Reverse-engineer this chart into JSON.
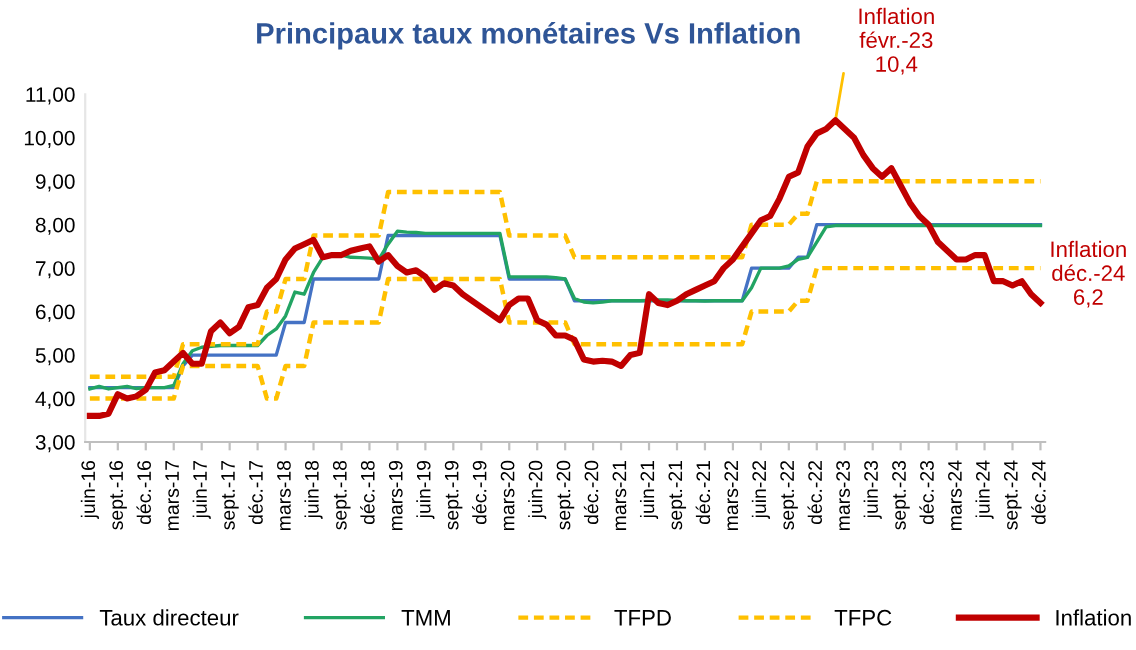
{
  "chart_data": {
    "type": "line",
    "title": "Principaux taux monétaires Vs Inflation",
    "categories": [
      "juin-16",
      null,
      null,
      "sept.-16",
      null,
      null,
      "déc.-16",
      null,
      null,
      "mars-17",
      null,
      null,
      "juin-17",
      null,
      null,
      "sept.-17",
      null,
      null,
      "déc.-17",
      null,
      null,
      "mars-18",
      null,
      null,
      "juin-18",
      null,
      null,
      "sept.-18",
      null,
      null,
      "déc.-18",
      null,
      null,
      "mars-19",
      null,
      null,
      "juin-19",
      null,
      null,
      "sept.-19",
      null,
      null,
      "déc.-19",
      null,
      null,
      "mars-20",
      null,
      null,
      "juin-20",
      null,
      null,
      "sept.-20",
      null,
      null,
      "déc.-20",
      null,
      null,
      "mars-21",
      null,
      null,
      "juin-21",
      null,
      null,
      "sept.-21",
      null,
      null,
      "déc.-21",
      null,
      null,
      "mars-22",
      null,
      null,
      "juin-22",
      null,
      null,
      "sept.-22",
      null,
      null,
      "déc.-22",
      null,
      null,
      "mars-23",
      null,
      null,
      "juin-23",
      null,
      null,
      "sept.-23",
      null,
      null,
      "déc.-23",
      null,
      null,
      "mars-24",
      null,
      null,
      "juin-24",
      null,
      null,
      "sept.-24",
      null,
      null,
      "déc.-24"
    ],
    "series": [
      {
        "name": "Taux directeur",
        "color": "#4472c4",
        "line_style": "solid",
        "values": [
          4.25,
          4.25,
          4.25,
          4.25,
          4.25,
          4.25,
          4.25,
          4.25,
          4.25,
          4.25,
          4.75,
          5.0,
          5.0,
          5.0,
          5.0,
          5.0,
          5.0,
          5.0,
          5.0,
          5.0,
          5.0,
          5.75,
          5.75,
          5.75,
          6.75,
          6.75,
          6.75,
          6.75,
          6.75,
          6.75,
          6.75,
          6.75,
          7.75,
          7.75,
          7.75,
          7.75,
          7.75,
          7.75,
          7.75,
          7.75,
          7.75,
          7.75,
          7.75,
          7.75,
          7.75,
          6.75,
          6.75,
          6.75,
          6.75,
          6.75,
          6.75,
          6.75,
          6.25,
          6.25,
          6.25,
          6.25,
          6.25,
          6.25,
          6.25,
          6.25,
          6.25,
          6.25,
          6.25,
          6.25,
          6.25,
          6.25,
          6.25,
          6.25,
          6.25,
          6.25,
          6.25,
          7.0,
          7.0,
          7.0,
          7.0,
          7.0,
          7.25,
          7.25,
          8.0,
          8.0,
          8.0,
          8.0,
          8.0,
          8.0,
          8.0,
          8.0,
          8.0,
          8.0,
          8.0,
          8.0,
          8.0,
          8.0,
          8.0,
          8.0,
          8.0,
          8.0,
          8.0,
          8.0,
          8.0,
          8.0,
          8.0,
          8.0,
          8.0
        ]
      },
      {
        "name": "TMM",
        "color": "#22a463",
        "line_style": "solid",
        "values": [
          4.22,
          4.28,
          4.22,
          4.25,
          4.28,
          4.23,
          4.25,
          4.25,
          4.25,
          4.3,
          4.8,
          5.1,
          5.18,
          5.2,
          5.22,
          5.22,
          5.22,
          5.22,
          5.22,
          5.45,
          5.6,
          5.9,
          6.45,
          6.4,
          6.9,
          7.25,
          7.28,
          7.3,
          7.25,
          7.24,
          7.23,
          7.2,
          7.55,
          7.85,
          7.83,
          7.82,
          7.8,
          7.8,
          7.8,
          7.8,
          7.8,
          7.8,
          7.8,
          7.8,
          7.8,
          6.8,
          6.8,
          6.8,
          6.8,
          6.8,
          6.78,
          6.75,
          6.3,
          6.22,
          6.2,
          6.22,
          6.25,
          6.25,
          6.25,
          6.25,
          6.26,
          6.27,
          6.27,
          6.26,
          6.25,
          6.25,
          6.24,
          6.25,
          6.25,
          6.25,
          6.25,
          6.55,
          7.0,
          7.0,
          7.0,
          7.05,
          7.2,
          7.25,
          7.6,
          7.95,
          7.98,
          7.98,
          7.98,
          7.98,
          7.98,
          7.98,
          7.98,
          7.98,
          7.98,
          7.98,
          7.98,
          7.98,
          7.98,
          7.98,
          7.98,
          7.98,
          7.98,
          7.98,
          7.98,
          7.98,
          7.98,
          7.98,
          7.98
        ]
      },
      {
        "name": "TFPD",
        "color": "#ffc000",
        "line_style": "dashed",
        "values": [
          4.0,
          4.0,
          4.0,
          4.0,
          4.0,
          4.0,
          4.0,
          4.0,
          4.0,
          4.0,
          4.75,
          4.75,
          4.75,
          4.75,
          4.75,
          4.75,
          4.75,
          4.75,
          4.75,
          4.0,
          4.0,
          4.75,
          4.75,
          4.75,
          5.75,
          5.75,
          5.75,
          5.75,
          5.75,
          5.75,
          5.75,
          5.75,
          6.75,
          6.75,
          6.75,
          6.75,
          6.75,
          6.75,
          6.75,
          6.75,
          6.75,
          6.75,
          6.75,
          6.75,
          6.75,
          5.75,
          5.75,
          5.75,
          5.75,
          5.75,
          5.75,
          5.75,
          5.25,
          5.25,
          5.25,
          5.25,
          5.25,
          5.25,
          5.25,
          5.25,
          5.25,
          5.25,
          5.25,
          5.25,
          5.25,
          5.25,
          5.25,
          5.25,
          5.25,
          5.25,
          5.25,
          6.0,
          6.0,
          6.0,
          6.0,
          6.0,
          6.25,
          6.25,
          7.0,
          7.0,
          7.0,
          7.0,
          7.0,
          7.0,
          7.0,
          7.0,
          7.0,
          7.0,
          7.0,
          7.0,
          7.0,
          7.0,
          7.0,
          7.0,
          7.0,
          7.0,
          7.0,
          7.0,
          7.0,
          7.0,
          7.0,
          7.0,
          7.0
        ]
      },
      {
        "name": "TFPC",
        "color": "#ffc000",
        "line_style": "dashed",
        "values": [
          4.5,
          4.5,
          4.5,
          4.5,
          4.5,
          4.5,
          4.5,
          4.5,
          4.5,
          4.5,
          5.25,
          5.25,
          5.25,
          5.25,
          5.25,
          5.25,
          5.25,
          5.25,
          5.25,
          6.0,
          6.0,
          6.75,
          6.75,
          6.75,
          7.75,
          7.75,
          7.75,
          7.75,
          7.75,
          7.75,
          7.75,
          7.75,
          8.75,
          8.75,
          8.75,
          8.75,
          8.75,
          8.75,
          8.75,
          8.75,
          8.75,
          8.75,
          8.75,
          8.75,
          8.75,
          7.75,
          7.75,
          7.75,
          7.75,
          7.75,
          7.75,
          7.75,
          7.25,
          7.25,
          7.25,
          7.25,
          7.25,
          7.25,
          7.25,
          7.25,
          7.25,
          7.25,
          7.25,
          7.25,
          7.25,
          7.25,
          7.25,
          7.25,
          7.25,
          7.25,
          7.25,
          8.0,
          8.0,
          8.0,
          8.0,
          8.0,
          8.25,
          8.25,
          9.0,
          9.0,
          9.0,
          9.0,
          9.0,
          9.0,
          9.0,
          9.0,
          9.0,
          9.0,
          9.0,
          9.0,
          9.0,
          9.0,
          9.0,
          9.0,
          9.0,
          9.0,
          9.0,
          9.0,
          9.0,
          9.0,
          9.0,
          9.0,
          9.0
        ]
      },
      {
        "name": "Inflation",
        "color": "#c00000",
        "line_style": "solid",
        "values": [
          3.6,
          3.6,
          3.65,
          4.1,
          4.0,
          4.05,
          4.2,
          4.6,
          4.65,
          4.85,
          5.05,
          4.8,
          4.8,
          5.55,
          5.75,
          5.5,
          5.65,
          6.1,
          6.15,
          6.55,
          6.75,
          7.2,
          7.45,
          7.55,
          7.65,
          7.25,
          7.3,
          7.3,
          7.4,
          7.45,
          7.5,
          7.15,
          7.3,
          7.05,
          6.9,
          6.95,
          6.8,
          6.5,
          6.65,
          6.6,
          6.4,
          6.25,
          6.1,
          5.95,
          5.8,
          6.15,
          6.3,
          6.3,
          5.8,
          5.7,
          5.45,
          5.45,
          5.35,
          4.9,
          4.85,
          4.87,
          4.85,
          4.75,
          5.0,
          5.05,
          6.4,
          6.2,
          6.15,
          6.25,
          6.4,
          6.5,
          6.6,
          6.7,
          7.0,
          7.2,
          7.5,
          7.8,
          8.1,
          8.2,
          8.6,
          9.1,
          9.2,
          9.8,
          10.1,
          10.2,
          10.4,
          10.2,
          10.0,
          9.6,
          9.3,
          9.1,
          9.3,
          8.9,
          8.5,
          8.2,
          8.0,
          7.6,
          7.4,
          7.2,
          7.2,
          7.3,
          7.3,
          6.7,
          6.7,
          6.6,
          6.7,
          6.4,
          6.2
        ]
      }
    ],
    "ylim": [
      3,
      11
    ],
    "yticks": [
      {
        "value": 3,
        "label": "3,00"
      },
      {
        "value": 4,
        "label": "4,00"
      },
      {
        "value": 5,
        "label": "5,00"
      },
      {
        "value": 6,
        "label": "6,00"
      },
      {
        "value": 7,
        "label": "7,00"
      },
      {
        "value": 8,
        "label": "8,00"
      },
      {
        "value": 9,
        "label": "9,00"
      },
      {
        "value": 10,
        "label": "10,00"
      },
      {
        "value": 11,
        "label": "11,00"
      }
    ],
    "annotations": [
      "Inflation\nfévr.-23\n10,4",
      "Inflation\ndéc.-24\n6,2"
    ],
    "grid": false,
    "legend": "bottom",
    "marker": "none"
  }
}
